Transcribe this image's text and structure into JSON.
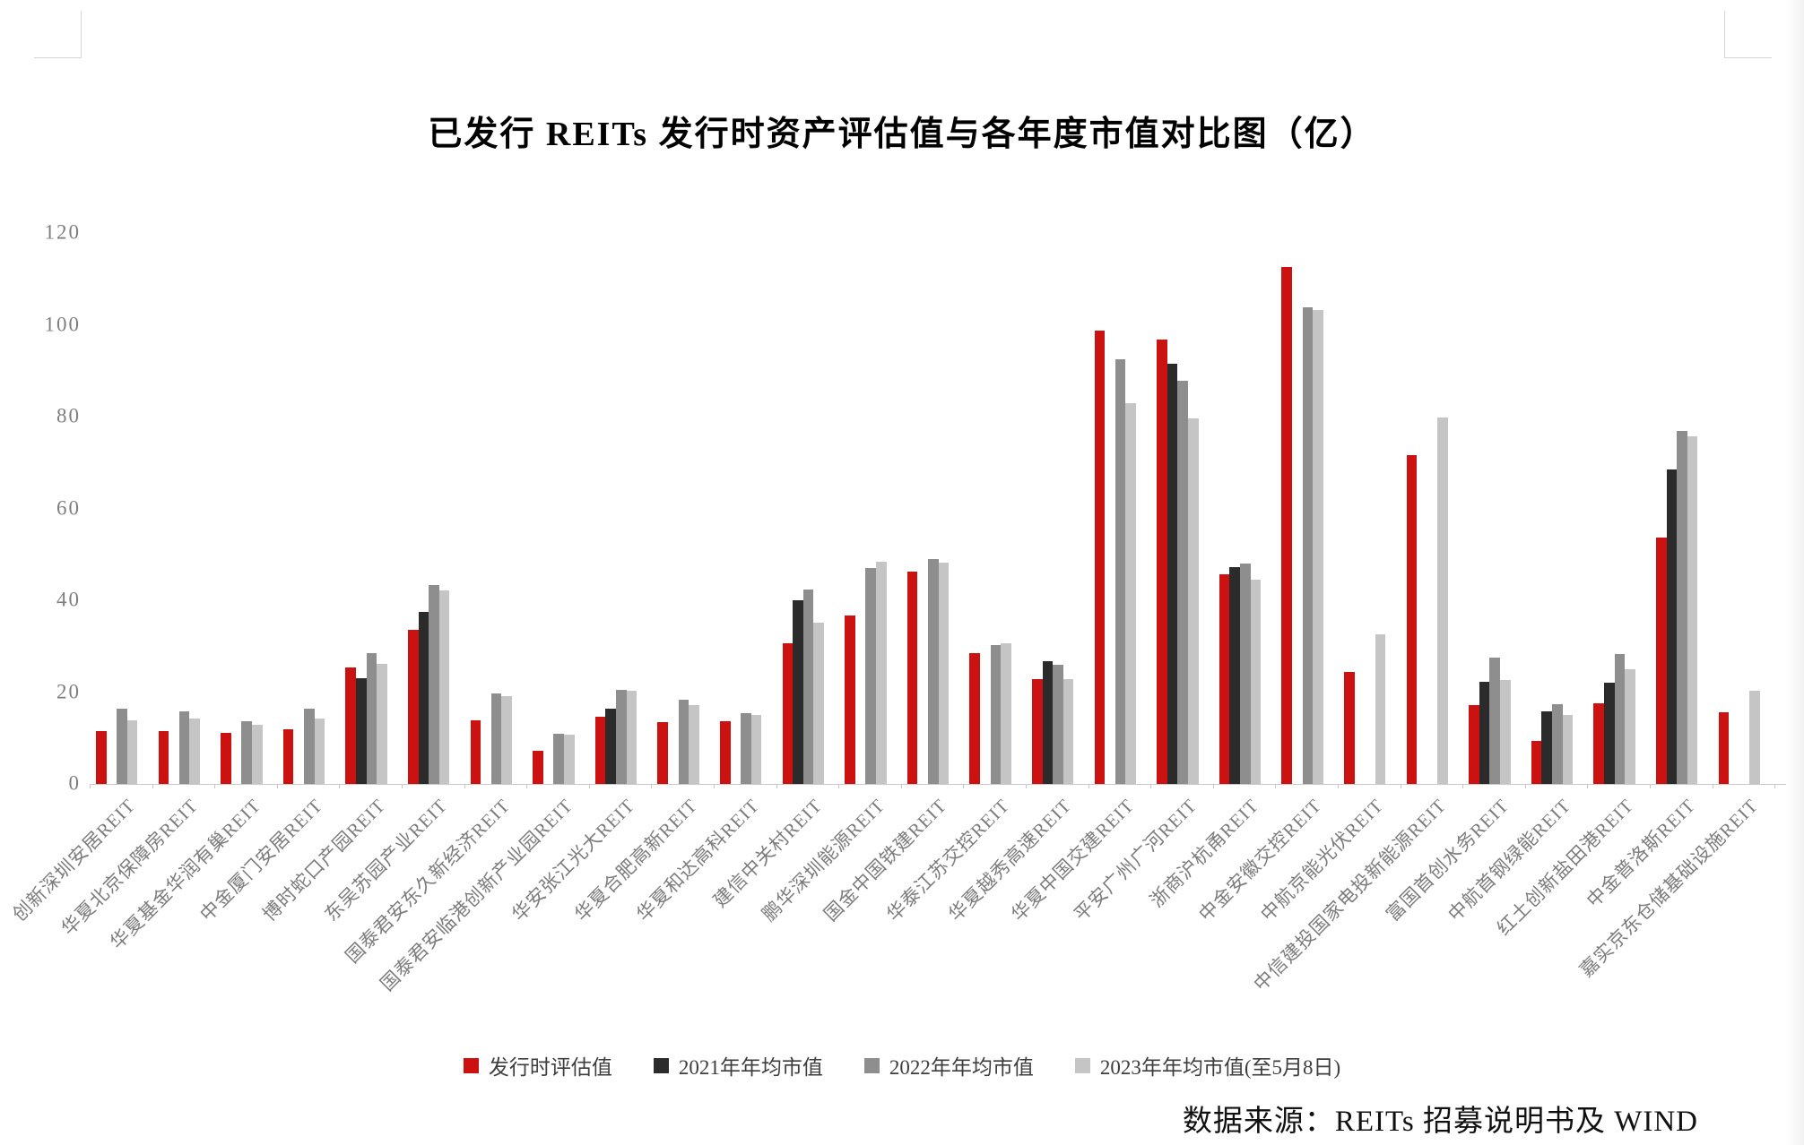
{
  "chart_data": {
    "type": "bar",
    "title": "已发行 REITs 发行时资产评估值与各年度市值对比图（亿）",
    "source": "数据来源：REITs 招募说明书及 WIND",
    "ylabel": "",
    "xlabel": "",
    "ylim": [
      0,
      120
    ],
    "yticks": [
      0,
      20,
      40,
      60,
      80,
      100,
      120
    ],
    "grid": false,
    "legend_position": "bottom",
    "axis_color": "#c9c9c9",
    "tick_text_color": "#7e7e7e",
    "categories": [
      "创新深圳安居REIT",
      "华夏北京保障房REIT",
      "华夏基金华润有巢REIT",
      "中金厦门安居REIT",
      "博时蛇口产园REIT",
      "东吴苏园产业REIT",
      "国泰君安东久新经济REIT",
      "国泰君安临港创新产业园REIT",
      "华安张江光大REIT",
      "华夏合肥高新REIT",
      "华夏和达高科REIT",
      "建信中关村REIT",
      "鹏华深圳能源REIT",
      "国金中国铁建REIT",
      "华泰江苏交控REIT",
      "华夏越秀高速REIT",
      "华夏中国交建REIT",
      "平安广州广河REIT",
      "浙商沪杭甬REIT",
      "中金安徽交控REIT",
      "中航京能光伏REIT",
      "中信建投国家电投新能源REIT",
      "富国首创水务REIT",
      "中航首钢绿能REIT",
      "红土创新盐田港REIT",
      "中金普洛斯REIT",
      "嘉实京东仓储基础设施REIT"
    ],
    "series": [
      {
        "name": "发行时评估值",
        "color": "#cc1111",
        "values": [
          11.6,
          11.5,
          11.1,
          12.0,
          25.3,
          33.5,
          13.8,
          7.2,
          14.7,
          13.4,
          13.6,
          30.7,
          36.7,
          46.2,
          28.5,
          22.8,
          98.8,
          96.7,
          45.6,
          112.5,
          24.4,
          71.6,
          17.2,
          9.4,
          17.5,
          53.6,
          15.6
        ]
      },
      {
        "name": "2021年年均市值",
        "color": "#2b2b2b",
        "values": [
          null,
          null,
          null,
          null,
          23.0,
          37.5,
          null,
          null,
          16.3,
          null,
          null,
          40.0,
          null,
          null,
          null,
          26.8,
          null,
          91.5,
          47.3,
          null,
          null,
          null,
          22.2,
          15.9,
          22.0,
          68.4,
          null
        ]
      },
      {
        "name": "2022年年均市值",
        "color": "#8e8e8e",
        "values": [
          16.3,
          15.9,
          13.6,
          16.3,
          28.5,
          43.3,
          19.8,
          11.0,
          20.5,
          18.4,
          15.4,
          42.3,
          47.0,
          49.0,
          30.3,
          26.0,
          92.4,
          87.8,
          48.0,
          103.8,
          null,
          null,
          27.5,
          17.4,
          28.2,
          76.8,
          null
        ]
      },
      {
        "name": "2023年年均市值(至5月8日)",
        "color": "#c5c5c5",
        "values": [
          13.9,
          14.2,
          12.8,
          14.3,
          26.2,
          42.2,
          19.2,
          10.7,
          20.3,
          17.2,
          15.0,
          35.2,
          48.3,
          48.1,
          30.7,
          22.8,
          82.9,
          79.7,
          44.4,
          103.2,
          32.6,
          79.9,
          22.7,
          15.0,
          25.0,
          75.8,
          20.3
        ]
      }
    ]
  }
}
